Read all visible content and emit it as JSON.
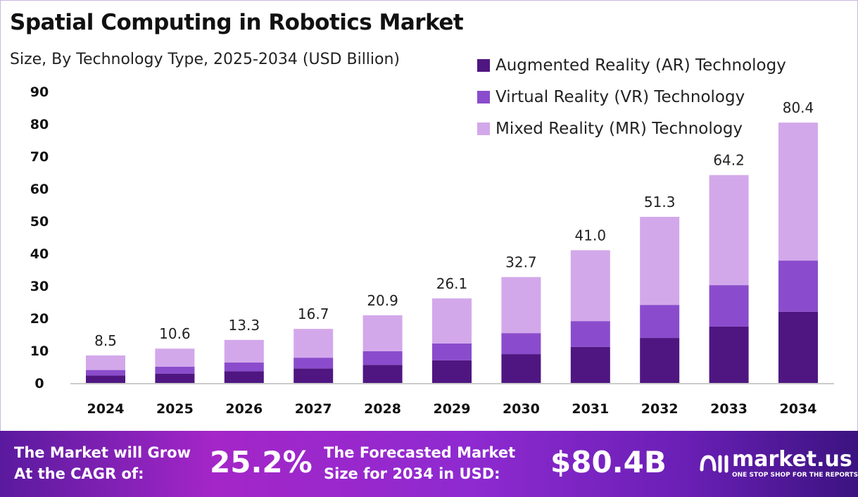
{
  "chart_data": {
    "type": "bar",
    "stacked": true,
    "title": "Spatial Computing in Robotics Market",
    "subtitle": "Size, By Technology Type, 2025-2034 (USD Billion)",
    "categories": [
      "2024",
      "2025",
      "2026",
      "2027",
      "2028",
      "2029",
      "2030",
      "2031",
      "2032",
      "2033",
      "2034"
    ],
    "series": [
      {
        "name": "Augmented Reality (AR) Technology",
        "color": "#4f1681",
        "values": [
          2.3,
          2.9,
          3.6,
          4.5,
          5.6,
          7.0,
          8.9,
          11.1,
          13.9,
          17.4,
          22.0
        ]
      },
      {
        "name": "Virtual Reality (VR) Technology",
        "color": "#8a4ccc",
        "values": [
          1.7,
          2.1,
          2.7,
          3.3,
          4.2,
          5.2,
          6.5,
          8.0,
          10.2,
          12.8,
          15.8
        ]
      },
      {
        "name": "Mixed Reality (MR) Technology",
        "color": "#d3a8eb",
        "values": [
          4.5,
          5.6,
          7.0,
          8.9,
          11.1,
          13.9,
          17.3,
          21.9,
          27.2,
          34.0,
          42.6
        ]
      }
    ],
    "totals": [
      "8.5",
      "10.6",
      "13.3",
      "16.7",
      "20.9",
      "26.1",
      "32.7",
      "41.0",
      "51.3",
      "64.2",
      "80.4"
    ],
    "yticks": [
      "0",
      "10",
      "20",
      "30",
      "40",
      "50",
      "60",
      "70",
      "80",
      "90"
    ],
    "ylim": [
      0,
      90
    ],
    "grid": false,
    "legend": "top-right"
  },
  "footer": {
    "cagr_text_1": "The Market will Grow",
    "cagr_text_2": "At the CAGR of:",
    "cagr_value": "25.2%",
    "forecast_text_1": "The Forecasted Market",
    "forecast_text_2": "Size for 2034 in USD:",
    "forecast_value": "$80.4B",
    "brand": "market.us",
    "brand_tagline": "ONE STOP SHOP FOR THE REPORTS"
  }
}
